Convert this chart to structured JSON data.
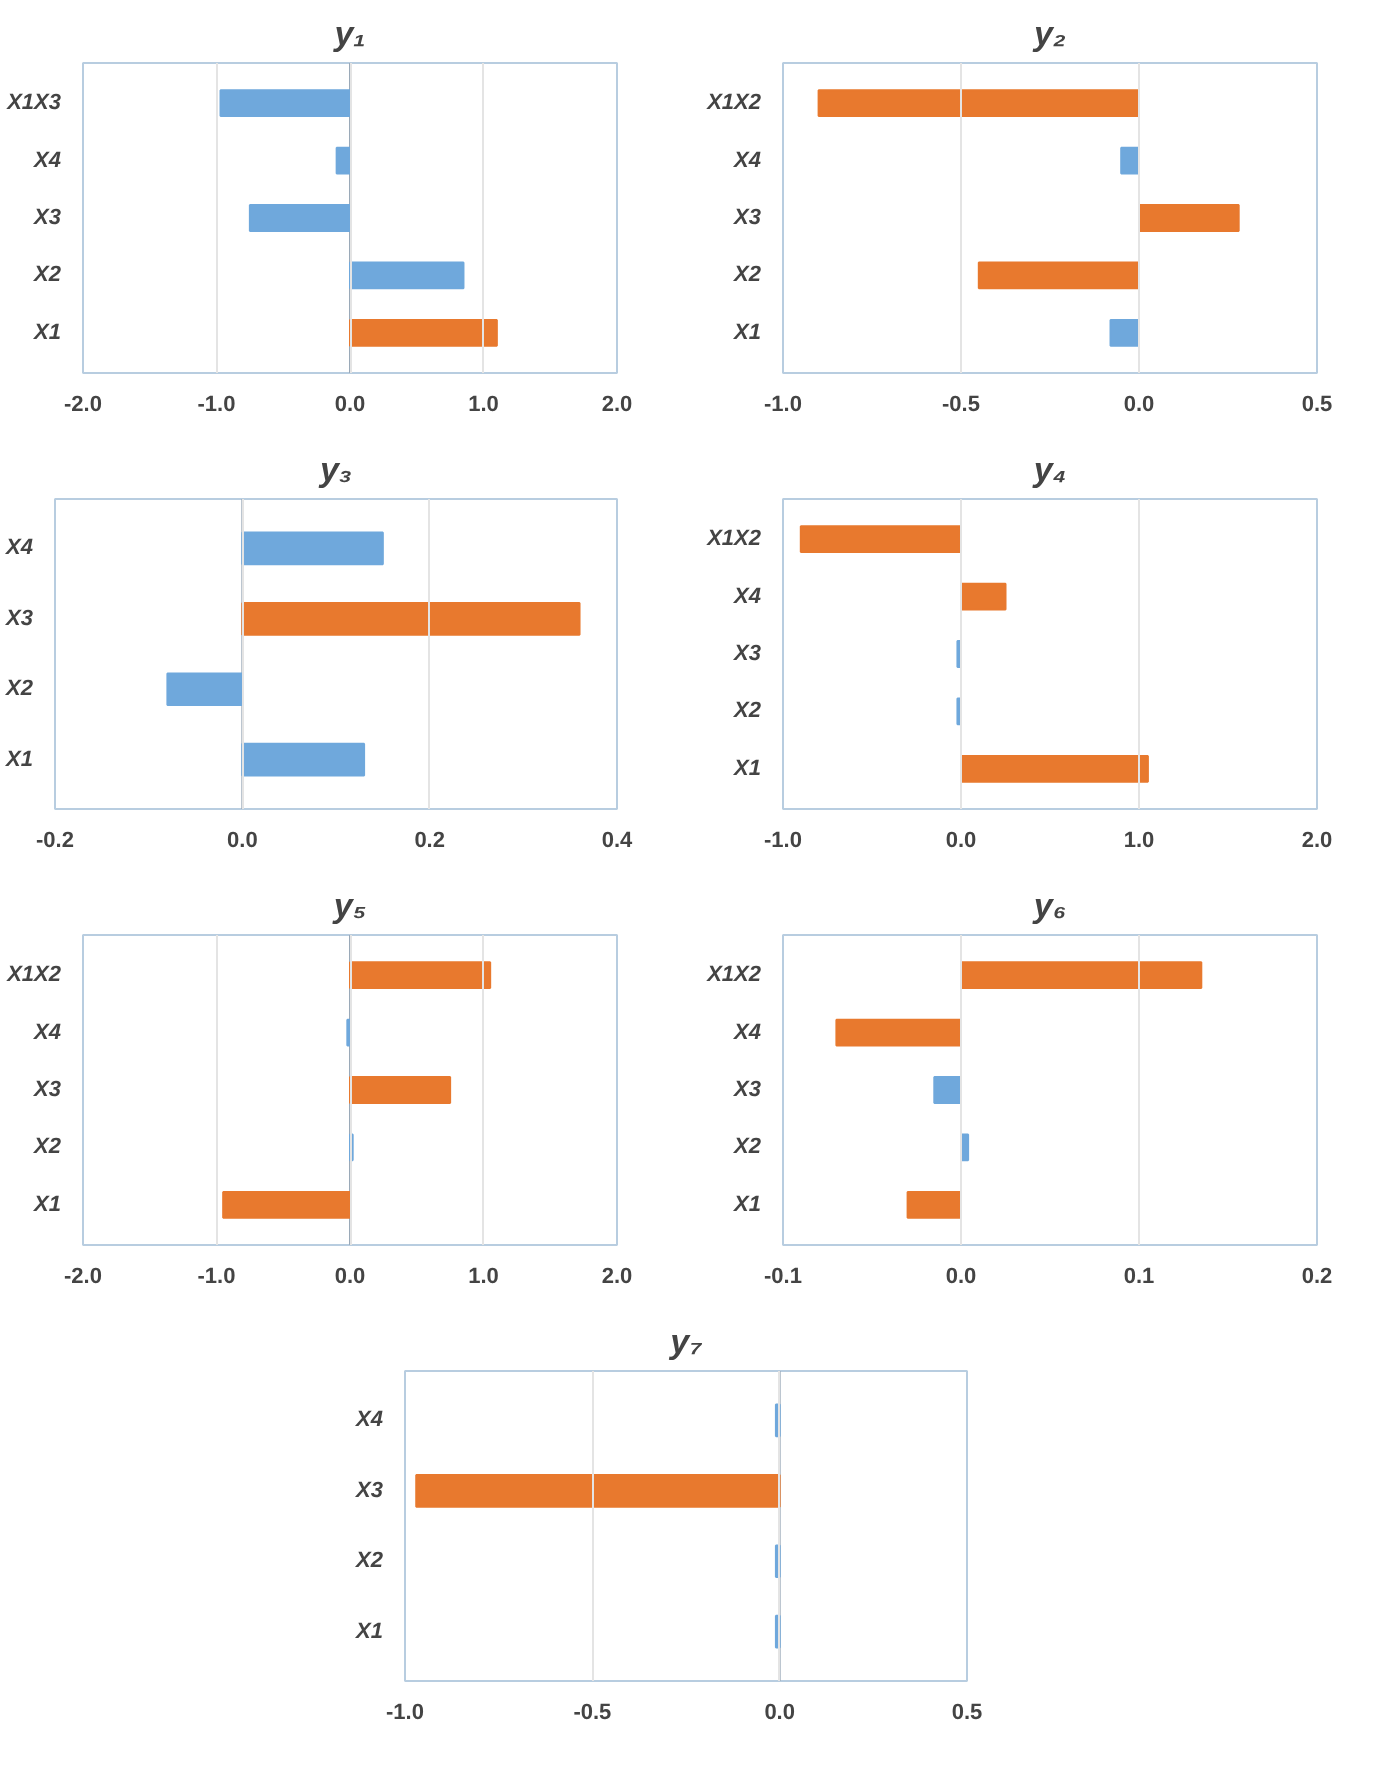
{
  "chart_data": [
    {
      "type": "bar",
      "orientation": "horizontal",
      "title": "y₁",
      "categories": [
        "X1X3",
        "X4",
        "X3",
        "X2",
        "X1"
      ],
      "values": [
        -0.97,
        -0.1,
        -0.75,
        0.85,
        1.1
      ],
      "colors": [
        "#6fa8dc",
        "#6fa8dc",
        "#6fa8dc",
        "#6fa8dc",
        "#e8792e"
      ],
      "xlim": [
        -2,
        2
      ],
      "xticks": [
        {
          "value": -2,
          "label": "-2.0"
        },
        {
          "value": -1,
          "label": "-1.0"
        },
        {
          "value": 0,
          "label": "0.0"
        },
        {
          "value": 1,
          "label": "1.0"
        },
        {
          "value": 2,
          "label": "2.0"
        }
      ],
      "grid": "x"
    },
    {
      "type": "bar",
      "orientation": "horizontal",
      "title": "y₂",
      "categories": [
        "X1X2",
        "X4",
        "X3",
        "X2",
        "X1"
      ],
      "values": [
        -0.9,
        -0.05,
        0.28,
        -0.45,
        -0.08
      ],
      "colors": [
        "#e8792e",
        "#6fa8dc",
        "#e8792e",
        "#e8792e",
        "#6fa8dc"
      ],
      "xlim": [
        -1,
        0.5
      ],
      "xticks": [
        {
          "value": -1,
          "label": "-1.0"
        },
        {
          "value": -0.5,
          "label": "-0.5"
        },
        {
          "value": 0,
          "label": "0.0"
        },
        {
          "value": 0.5,
          "label": "0.5"
        }
      ],
      "grid": "x"
    },
    {
      "type": "bar",
      "orientation": "horizontal",
      "title": "y₃",
      "categories": [
        "X4",
        "X3",
        "X2",
        "X1"
      ],
      "values": [
        0.15,
        0.36,
        -0.08,
        0.13
      ],
      "colors": [
        "#6fa8dc",
        "#e8792e",
        "#6fa8dc",
        "#6fa8dc"
      ],
      "xlim": [
        -0.2,
        0.4
      ],
      "xticks": [
        {
          "value": -0.2,
          "label": "-0.2"
        },
        {
          "value": 0,
          "label": "0.0"
        },
        {
          "value": 0.2,
          "label": "0.2"
        },
        {
          "value": 0.4,
          "label": "0.4"
        }
      ],
      "grid": "x"
    },
    {
      "type": "bar",
      "orientation": "horizontal",
      "title": "y₄",
      "categories": [
        "X1X2",
        "X4",
        "X3",
        "X2",
        "X1"
      ],
      "values": [
        -0.9,
        0.25,
        -0.02,
        -0.02,
        1.05
      ],
      "colors": [
        "#e8792e",
        "#e8792e",
        "#6fa8dc",
        "#6fa8dc",
        "#e8792e"
      ],
      "xlim": [
        -1,
        2
      ],
      "xticks": [
        {
          "value": -1,
          "label": "-1.0"
        },
        {
          "value": 0,
          "label": "0.0"
        },
        {
          "value": 1,
          "label": "1.0"
        },
        {
          "value": 2,
          "label": "2.0"
        }
      ],
      "grid": "x"
    },
    {
      "type": "bar",
      "orientation": "horizontal",
      "title": "y₅",
      "categories": [
        "X1X2",
        "X4",
        "X3",
        "X2",
        "X1"
      ],
      "values": [
        1.05,
        -0.02,
        0.75,
        0.02,
        -0.95
      ],
      "colors": [
        "#e8792e",
        "#6fa8dc",
        "#e8792e",
        "#6fa8dc",
        "#e8792e"
      ],
      "xlim": [
        -2,
        2
      ],
      "xticks": [
        {
          "value": -2,
          "label": "-2.0"
        },
        {
          "value": -1,
          "label": "-1.0"
        },
        {
          "value": 0,
          "label": "0.0"
        },
        {
          "value": 1,
          "label": "1.0"
        },
        {
          "value": 2,
          "label": "2.0"
        }
      ],
      "grid": "x"
    },
    {
      "type": "bar",
      "orientation": "horizontal",
      "title": "y₆",
      "categories": [
        "X1X2",
        "X4",
        "X3",
        "X2",
        "X1"
      ],
      "values": [
        0.135,
        -0.07,
        -0.015,
        0.004,
        -0.03
      ],
      "colors": [
        "#e8792e",
        "#e8792e",
        "#6fa8dc",
        "#6fa8dc",
        "#e8792e"
      ],
      "xlim": [
        -0.1,
        0.2
      ],
      "xticks": [
        {
          "value": -0.1,
          "label": "-0.1"
        },
        {
          "value": 0,
          "label": "0.0"
        },
        {
          "value": 0.1,
          "label": "0.1"
        },
        {
          "value": 0.2,
          "label": "0.2"
        }
      ],
      "grid": "x"
    },
    {
      "type": "bar",
      "orientation": "horizontal",
      "title": "y₇",
      "categories": [
        "X4",
        "X3",
        "X2",
        "X1"
      ],
      "values": [
        -0.01,
        -0.97,
        -0.01,
        -0.01
      ],
      "colors": [
        "#6fa8dc",
        "#e8792e",
        "#6fa8dc",
        "#6fa8dc"
      ],
      "xlim": [
        -1,
        0.5
      ],
      "xticks": [
        {
          "value": -1,
          "label": "-1.0"
        },
        {
          "value": -0.5,
          "label": "-0.5"
        },
        {
          "value": 0,
          "label": "0.0"
        },
        {
          "value": 0.5,
          "label": "0.5"
        }
      ],
      "grid": "x"
    }
  ]
}
